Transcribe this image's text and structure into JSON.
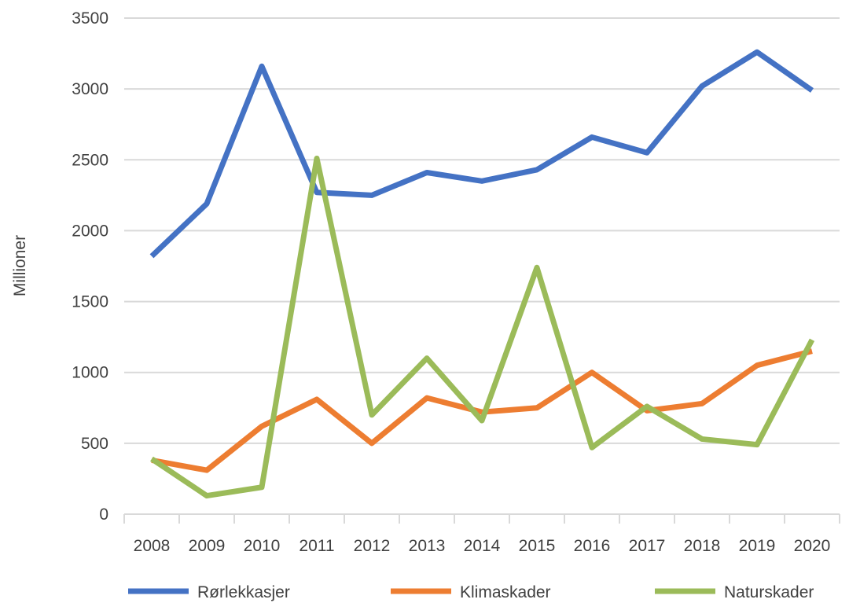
{
  "chart_data": {
    "type": "line",
    "title": "",
    "xlabel": "",
    "ylabel": "Millioner",
    "ylim": [
      0,
      3500
    ],
    "ytick_step": 500,
    "grid": true,
    "legend_position": "bottom",
    "x": [
      "2008",
      "2009",
      "2010",
      "2011",
      "2012",
      "2013",
      "2014",
      "2015",
      "2016",
      "2017",
      "2018",
      "2019",
      "2020"
    ],
    "series": [
      {
        "name": "Rørlekkasjer",
        "color": "#4472c4",
        "values": [
          1820,
          2190,
          3160,
          2270,
          2250,
          2410,
          2350,
          2430,
          2660,
          2550,
          3020,
          3260,
          2990
        ]
      },
      {
        "name": "Klimaskader",
        "color": "#ed7d31",
        "values": [
          380,
          310,
          620,
          810,
          500,
          820,
          720,
          750,
          1000,
          730,
          780,
          1050,
          1150
        ]
      },
      {
        "name": "Naturskader",
        "color": "#9bbb59",
        "values": [
          390,
          130,
          190,
          2510,
          700,
          1100,
          660,
          1740,
          470,
          760,
          530,
          490,
          1230
        ]
      }
    ]
  }
}
